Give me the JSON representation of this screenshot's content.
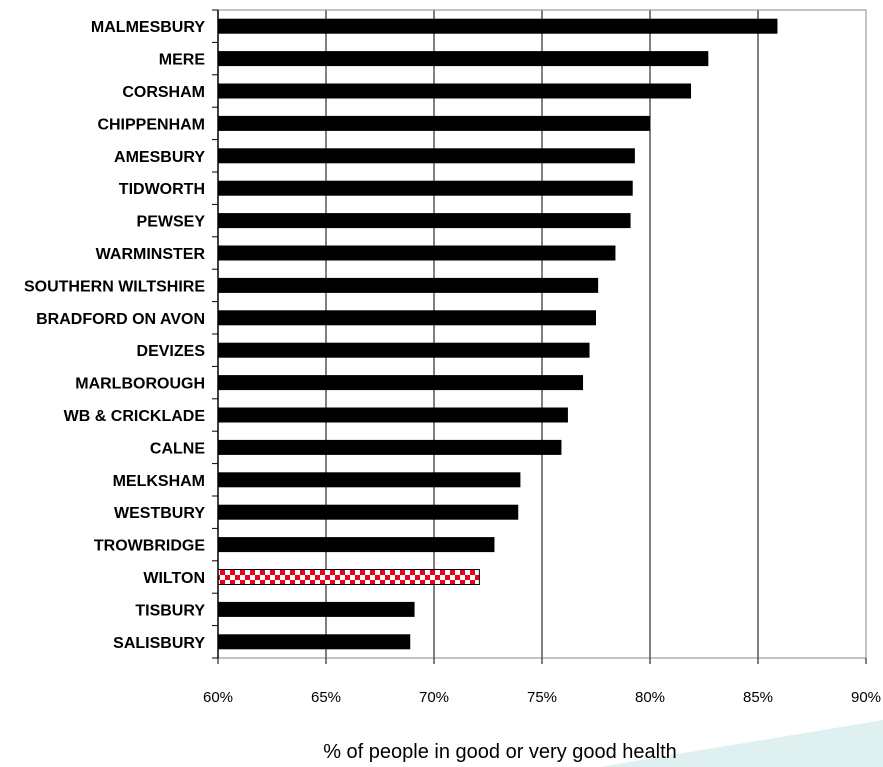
{
  "chart_data": {
    "type": "bar",
    "orientation": "horizontal",
    "categories": [
      "MALMESBURY",
      "MERE",
      "CORSHAM",
      "CHIPPENHAM",
      "AMESBURY",
      "TIDWORTH",
      "PEWSEY",
      "WARMINSTER",
      "SOUTHERN WILTSHIRE",
      "BRADFORD ON AVON",
      "DEVIZES",
      "MARLBOROUGH",
      "WB & CRICKLADE",
      "CALNE",
      "MELKSHAM",
      "WESTBURY",
      "TROWBRIDGE",
      "WILTON",
      "TISBURY",
      "SALISBURY"
    ],
    "values": [
      85.9,
      82.7,
      81.9,
      80.0,
      79.3,
      79.2,
      79.1,
      78.4,
      77.6,
      77.5,
      77.2,
      76.9,
      76.2,
      75.9,
      74.0,
      73.9,
      72.8,
      72.1,
      69.1,
      68.9
    ],
    "highlight": "WILTON",
    "bar_color": "#000000",
    "highlight_colors": [
      "#e8001c",
      "#ffffff"
    ],
    "xlim": [
      60,
      90
    ],
    "xticks": [
      "60%",
      "65%",
      "70%",
      "75%",
      "80%",
      "85%",
      "90%"
    ],
    "xtick_values": [
      60,
      65,
      70,
      75,
      80,
      85,
      90
    ],
    "xlabel": "% of people in good or very good health",
    "grid": "vertical"
  }
}
